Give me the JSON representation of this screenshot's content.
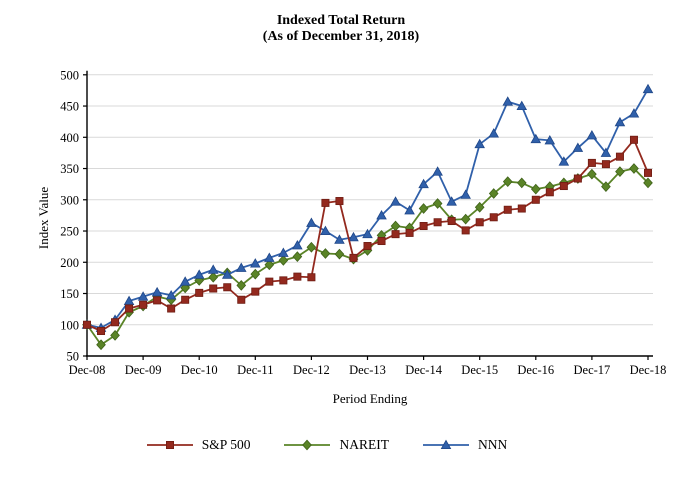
{
  "title": {
    "line1": "Indexed Total Return",
    "line2": "(As of December 31, 2018)"
  },
  "axes": {
    "y_label": "Index Value",
    "x_label": "Period Ending",
    "y_ticks": [
      50,
      100,
      150,
      200,
      250,
      300,
      350,
      400,
      450,
      500
    ],
    "x_tick_labels": [
      "Dec-08",
      "Dec-09",
      "Dec-10",
      "Dec-11",
      "Dec-12",
      "Dec-13",
      "Dec-14",
      "Dec-15",
      "Dec-16",
      "Dec-17",
      "Dec-18"
    ]
  },
  "chart_data": {
    "type": "line",
    "title": "Indexed Total Return (As of December 31, 2018)",
    "xlabel": "Period Ending",
    "ylabel": "Index Value",
    "ylim": [
      50,
      500
    ],
    "grid": true,
    "legend_position": "bottom",
    "x": [
      "Dec-08",
      "Mar-09",
      "Jun-09",
      "Sep-09",
      "Dec-09",
      "Mar-10",
      "Jun-10",
      "Sep-10",
      "Dec-10",
      "Mar-11",
      "Jun-11",
      "Sep-11",
      "Dec-11",
      "Mar-12",
      "Jun-12",
      "Sep-12",
      "Dec-12",
      "Mar-13",
      "Jun-13",
      "Sep-13",
      "Dec-13",
      "Mar-14",
      "Jun-14",
      "Sep-14",
      "Dec-14",
      "Mar-15",
      "Jun-15",
      "Sep-15",
      "Dec-15",
      "Mar-16",
      "Jun-16",
      "Sep-16",
      "Dec-16",
      "Mar-17",
      "Jun-17",
      "Sep-17",
      "Dec-17",
      "Mar-18",
      "Jun-18",
      "Sep-18",
      "Dec-18"
    ],
    "series": [
      {
        "name": "S&P 500",
        "marker": "square",
        "color": "#93291E",
        "marker_stroke": "#6E1D13",
        "values": [
          100,
          90,
          104,
          126,
          132,
          139,
          126,
          140,
          151,
          158,
          160,
          140,
          153,
          169,
          171,
          177,
          176,
          295,
          298,
          207,
          226,
          234,
          245,
          247,
          258,
          264,
          266,
          251,
          264,
          272,
          284,
          286,
          300,
          312,
          322,
          334,
          359,
          357,
          369,
          396,
          343
        ]
      },
      {
        "name": "NAREIT",
        "marker": "diamond",
        "color": "#5A8427",
        "marker_stroke": "#3F611A",
        "values": [
          100,
          68,
          83,
          120,
          130,
          145,
          140,
          159,
          171,
          176,
          183,
          163,
          181,
          196,
          203,
          209,
          224,
          214,
          213,
          205,
          219,
          243,
          258,
          255,
          286,
          294,
          268,
          269,
          288,
          310,
          329,
          327,
          317,
          321,
          327,
          334,
          341,
          321,
          345,
          350,
          327
        ]
      },
      {
        "name": "NNN",
        "marker": "triangle",
        "color": "#3060AA",
        "marker_stroke": "#1F4687",
        "values": [
          100,
          95,
          108,
          138,
          145,
          152,
          147,
          169,
          180,
          188,
          180,
          191,
          198,
          207,
          215,
          227,
          263,
          250,
          236,
          240,
          245,
          275,
          297,
          283,
          325,
          345,
          297,
          308,
          389,
          406,
          457,
          450,
          397,
          395,
          361,
          383,
          403,
          375,
          424,
          438,
          477
        ]
      }
    ],
    "grid_color": "#d9d9d9",
    "axis_color": "#000000"
  }
}
